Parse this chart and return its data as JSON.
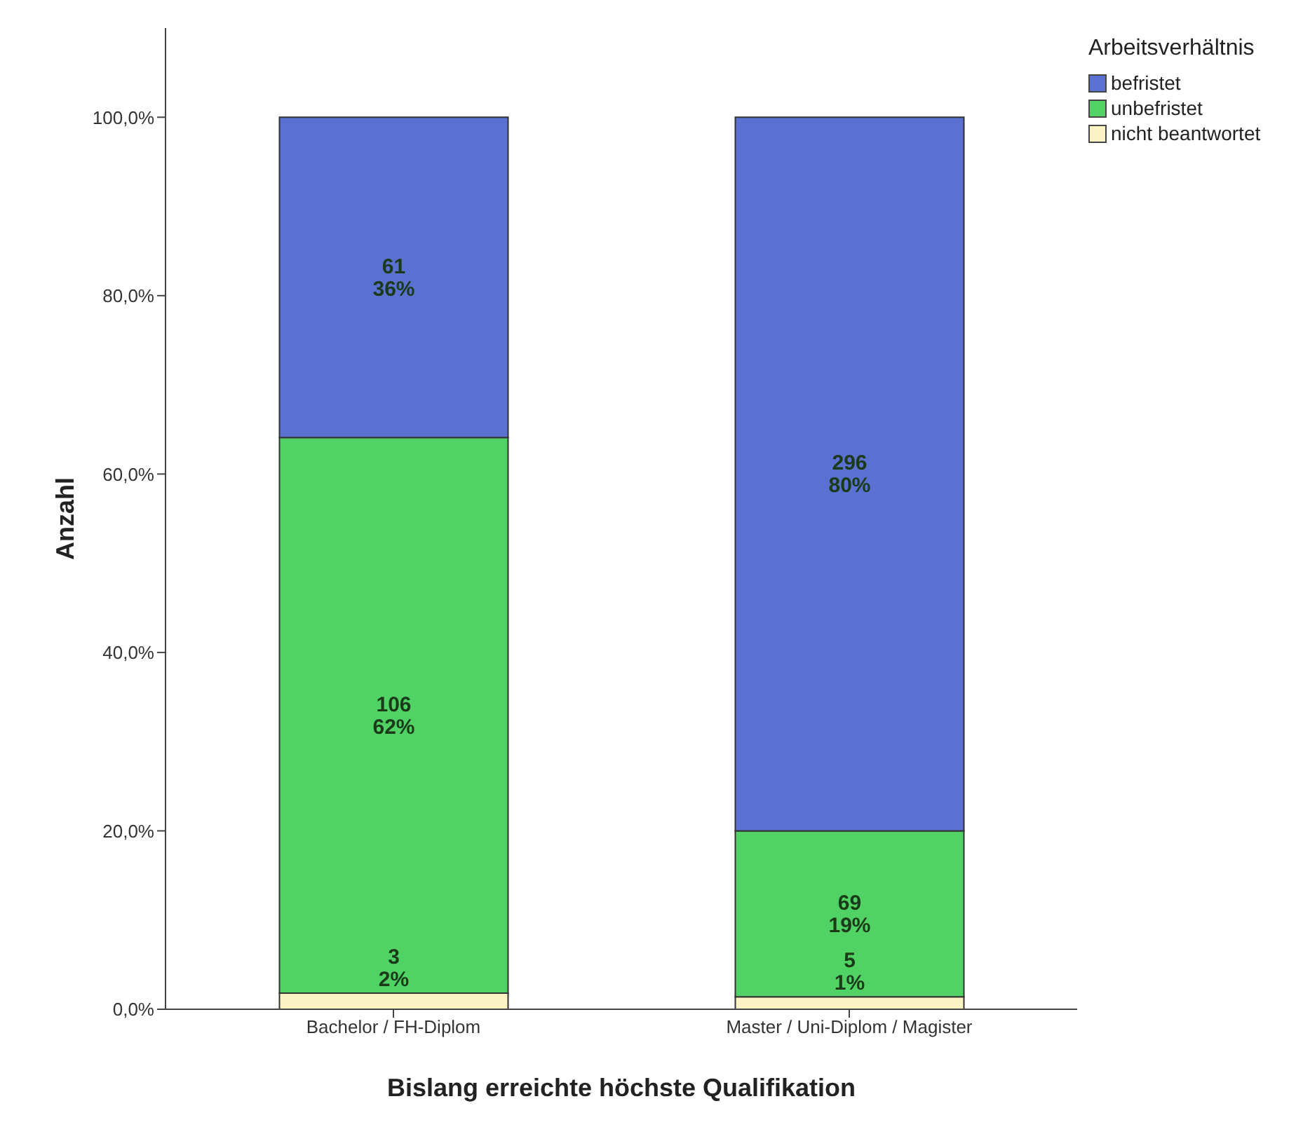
{
  "chart_data": {
    "type": "bar",
    "stacked": true,
    "xlabel": "Bislang erreichte höchste Qualifikation",
    "ylabel": "Anzahl",
    "legend_title": "Arbeitsverhältnis",
    "legend": "top right",
    "grid": false,
    "categories": [
      "Bachelor / FH-Diplom",
      "Master / Uni-Diplom / Magister"
    ],
    "ylim": [
      0,
      110
    ],
    "yticks": [
      {
        "value": 0,
        "label": "0,0%"
      },
      {
        "value": 20,
        "label": "20,0%"
      },
      {
        "value": 40,
        "label": "40,0%"
      },
      {
        "value": 60,
        "label": "60,0%"
      },
      {
        "value": 80,
        "label": "80,0%"
      },
      {
        "value": 100,
        "label": "100,0%"
      }
    ],
    "series": [
      {
        "name": "nicht beantwortet",
        "color": "#fbf3c4",
        "values": [
          1.8,
          1.4
        ],
        "value_labels": [
          "3\n2%",
          "5\n1%"
        ]
      },
      {
        "name": "unbefristet",
        "color": "#50d264",
        "values": [
          62.3,
          18.6
        ],
        "value_labels": [
          "106\n62%",
          "69\n19%"
        ]
      },
      {
        "name": "befristet",
        "color": "#5b71d1",
        "values": [
          35.9,
          80.0
        ],
        "value_labels": [
          "61\n36%",
          "296\n80%"
        ]
      }
    ]
  }
}
